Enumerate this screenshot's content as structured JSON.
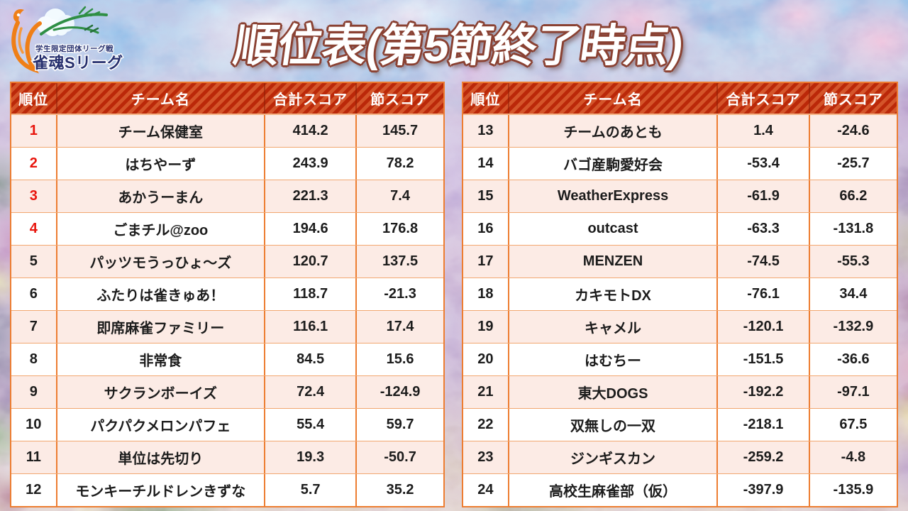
{
  "logo": {
    "subtitle": "学生限定団体リーグ戦",
    "name": "雀魂Sリーグ"
  },
  "title": "順位表(第5節終了時点)",
  "table": {
    "headers": [
      "順位",
      "チーム名",
      "合計スコア",
      "節スコア"
    ],
    "left_rows": [
      {
        "rank": "1",
        "team": "チーム保健室",
        "total": "414.2",
        "round": "145.7",
        "red": true
      },
      {
        "rank": "2",
        "team": "はちやーず",
        "total": "243.9",
        "round": "78.2",
        "red": true
      },
      {
        "rank": "3",
        "team": "あかうーまん",
        "total": "221.3",
        "round": "7.4",
        "red": true
      },
      {
        "rank": "4",
        "team": "ごまチル@zoo",
        "total": "194.6",
        "round": "176.8",
        "red": true
      },
      {
        "rank": "5",
        "team": "パッツモうっひょ〜ズ",
        "total": "120.7",
        "round": "137.5",
        "red": false
      },
      {
        "rank": "6",
        "team": "ふたりは雀きゅあ！",
        "total": "118.7",
        "round": "-21.3",
        "red": false
      },
      {
        "rank": "7",
        "team": "即席麻雀ファミリー",
        "total": "116.1",
        "round": "17.4",
        "red": false
      },
      {
        "rank": "8",
        "team": "非常食",
        "total": "84.5",
        "round": "15.6",
        "red": false
      },
      {
        "rank": "9",
        "team": "サクランボーイズ",
        "total": "72.4",
        "round": "-124.9",
        "red": false
      },
      {
        "rank": "10",
        "team": "パクパクメロンパフェ",
        "total": "55.4",
        "round": "59.7",
        "red": false
      },
      {
        "rank": "11",
        "team": "単位は先切り",
        "total": "19.3",
        "round": "-50.7",
        "red": false
      },
      {
        "rank": "12",
        "team": "モンキーチルドレンきずな",
        "total": "5.7",
        "round": "35.2",
        "red": false
      }
    ],
    "right_rows": [
      {
        "rank": "13",
        "team": "チームのあとも",
        "total": "1.4",
        "round": "-24.6",
        "red": false
      },
      {
        "rank": "14",
        "team": "バゴ産駒愛好会",
        "total": "-53.4",
        "round": "-25.7",
        "red": false
      },
      {
        "rank": "15",
        "team": "WeatherExpress",
        "total": "-61.9",
        "round": "66.2",
        "red": false
      },
      {
        "rank": "16",
        "team": "outcast",
        "total": "-63.3",
        "round": "-131.8",
        "red": false
      },
      {
        "rank": "17",
        "team": "MENZEN",
        "total": "-74.5",
        "round": "-55.3",
        "red": false
      },
      {
        "rank": "18",
        "team": "カキモトDX",
        "total": "-76.1",
        "round": "34.4",
        "red": false
      },
      {
        "rank": "19",
        "team": "キャメル",
        "total": "-120.1",
        "round": "-132.9",
        "red": false
      },
      {
        "rank": "20",
        "team": "はむちー",
        "total": "-151.5",
        "round": "-36.6",
        "red": false
      },
      {
        "rank": "21",
        "team": "東大DOGS",
        "total": "-192.2",
        "round": "-97.1",
        "red": false
      },
      {
        "rank": "22",
        "team": "双無しの一双",
        "total": "-218.1",
        "round": "67.5",
        "red": false
      },
      {
        "rank": "23",
        "team": "ジンギスカン",
        "total": "-259.2",
        "round": "-4.8",
        "red": false
      },
      {
        "rank": "24",
        "team": "高校生麻雀部（仮）",
        "total": "-397.9",
        "round": "-135.9",
        "red": false
      }
    ]
  },
  "colors": {
    "header_red_dark": "#bb2809",
    "header_red_stripe": "#d4552a",
    "border_orange": "#ed7d31",
    "row_pink": "#fcebe5",
    "rank_red": "#e8150d",
    "title_fill": "#ffffff",
    "title_outline": "#8a4132",
    "logo_navy": "#27306e",
    "logo_orange": "#ef7f17",
    "logo_green": "#2f8f45"
  },
  "chart_data": {
    "type": "table",
    "title": "順位表(第5節終了時点)",
    "columns": [
      "順位",
      "チーム名",
      "合計スコア",
      "節スコア"
    ],
    "rows": [
      [
        1,
        "チーム保健室",
        414.2,
        145.7
      ],
      [
        2,
        "はちやーず",
        243.9,
        78.2
      ],
      [
        3,
        "あかうーまん",
        221.3,
        7.4
      ],
      [
        4,
        "ごまチル@zoo",
        194.6,
        176.8
      ],
      [
        5,
        "パッツモうっひょ〜ズ",
        120.7,
        137.5
      ],
      [
        6,
        "ふたりは雀きゅあ！",
        118.7,
        -21.3
      ],
      [
        7,
        "即席麻雀ファミリー",
        116.1,
        17.4
      ],
      [
        8,
        "非常食",
        84.5,
        15.6
      ],
      [
        9,
        "サクランボーイズ",
        72.4,
        -124.9
      ],
      [
        10,
        "パクパクメロンパフェ",
        55.4,
        59.7
      ],
      [
        11,
        "単位は先切り",
        19.3,
        -50.7
      ],
      [
        12,
        "モンキーチルドレンきずな",
        5.7,
        35.2
      ],
      [
        13,
        "チームのあとも",
        1.4,
        -24.6
      ],
      [
        14,
        "バゴ産駒愛好会",
        -53.4,
        -25.7
      ],
      [
        15,
        "WeatherExpress",
        -61.9,
        66.2
      ],
      [
        16,
        "outcast",
        -63.3,
        -131.8
      ],
      [
        17,
        "MENZEN",
        -74.5,
        -55.3
      ],
      [
        18,
        "カキモトDX",
        -76.1,
        34.4
      ],
      [
        19,
        "キャメル",
        -120.1,
        -132.9
      ],
      [
        20,
        "はむちー",
        -151.5,
        -36.6
      ],
      [
        21,
        "東大DOGS",
        -192.2,
        -97.1
      ],
      [
        22,
        "双無しの一双",
        -218.1,
        67.5
      ],
      [
        23,
        "ジンギスカン",
        -259.2,
        -4.8
      ],
      [
        24,
        "高校生麻雀部（仮）",
        -397.9,
        -135.9
      ]
    ],
    "layout": "split into two side-by-side tables: ranks 1-12 left, 13-24 right; ranks 1-4 shown in red"
  }
}
